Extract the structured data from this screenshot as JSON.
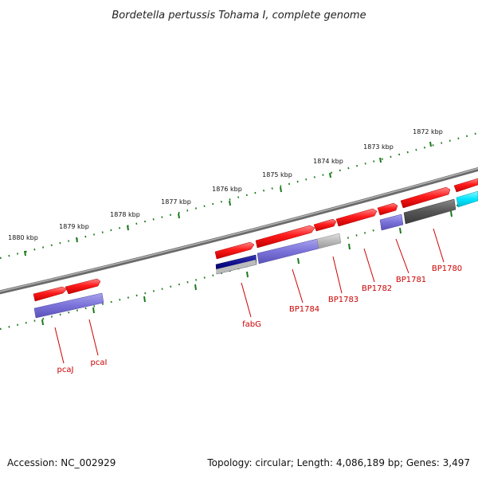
{
  "title": "Bordetella pertussis Tohama I, complete genome",
  "footer": {
    "accession": "Accession: NC_002929",
    "summary": "Topology: circular; Length: 4,086,189 bp; Genes: 3,497"
  },
  "scale_labels": [
    "1880 kbp",
    "1879 kbp",
    "1878 kbp",
    "1877 kbp",
    "1876 kbp",
    "1875 kbp",
    "1874 kbp",
    "1873 kbp",
    "1872 kbp"
  ],
  "genes": [
    {
      "label": "pcaJ",
      "colors": {
        "top": "#ee1111",
        "bottom": "#7a72d8"
      }
    },
    {
      "label": "pcaI",
      "colors": {
        "top": "#ee1111",
        "bottom": "#7a72d8"
      }
    },
    {
      "label": "fabG",
      "colors": {
        "top": "#ee1111",
        "bottom": "#0a0a88"
      }
    },
    {
      "label": "BP1784",
      "colors": {
        "top": "#ee1111",
        "bottom": "#7a72d8"
      }
    },
    {
      "label": "BP1783",
      "colors": {
        "top": "#ee1111",
        "bottom": "#bbbbbb"
      }
    },
    {
      "label": "BP1782",
      "colors": {
        "top": "#ee1111"
      }
    },
    {
      "label": "BP1781",
      "colors": {
        "top": "#ee1111",
        "bottom": "#7a72d8"
      }
    },
    {
      "label": "BP1780",
      "colors": {
        "top": "#ee1111",
        "bottom": "#555555"
      }
    }
  ],
  "colors": {
    "backbone": "#808080",
    "scale": "#1a7a1a",
    "gene_label": "#cc0000",
    "cds_forward": "#ee1111",
    "extra_feature": "#00e5ff"
  }
}
